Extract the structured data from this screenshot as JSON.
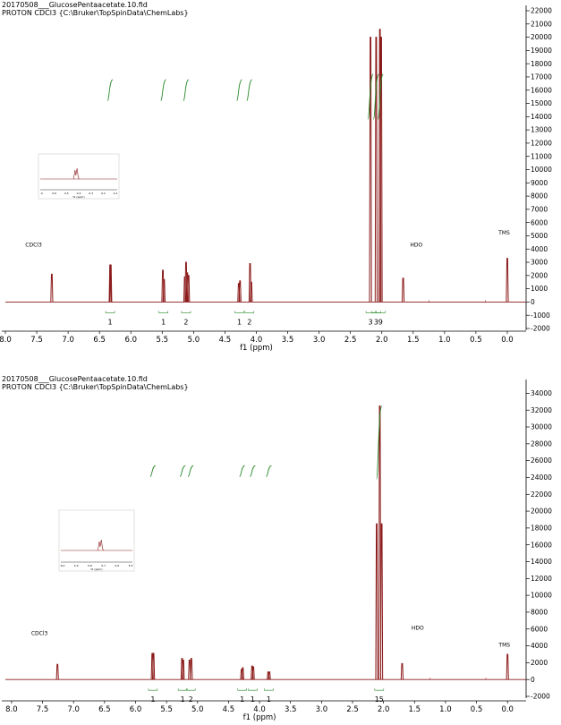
{
  "chart_data": [
    {
      "type": "line",
      "title_line1": "20170508___GlucosePentaacetate.10.fid",
      "title_line2": "PROTON CDCl3 {C:\\Bruker\\TopSpinData\\ChemLabs}",
      "xlabel": "f1 (ppm)",
      "xlim": [
        8.0,
        -0.3
      ],
      "x_ticks": [
        "8.0",
        "7.5",
        "7.0",
        "6.5",
        "6.0",
        "5.5",
        "5.0",
        "4.5",
        "4.0",
        "3.5",
        "3.0",
        "2.5",
        "2.0",
        "1.5",
        "1.0",
        "0.5",
        "0.0"
      ],
      "ylim": [
        -2000,
        22000
      ],
      "y_ticks": [
        "22000",
        "21000",
        "20000",
        "19000",
        "18000",
        "17000",
        "16000",
        "15000",
        "14000",
        "13000",
        "12000",
        "11000",
        "10000",
        "9000",
        "8000",
        "7000",
        "6000",
        "5000",
        "4000",
        "3000",
        "2000",
        "1000",
        "0",
        "-1000",
        "-2000"
      ],
      "line_color": "#8b1a1a",
      "integral_color": "#2a8a2a",
      "peaks": [
        {
          "ppm": 7.26,
          "height": 2100
        },
        {
          "ppm": 6.33,
          "height": 2800
        },
        {
          "ppm": 6.32,
          "height": 2800
        },
        {
          "ppm": 5.49,
          "height": 2400
        },
        {
          "ppm": 5.47,
          "height": 1700
        },
        {
          "ppm": 5.14,
          "height": 1900
        },
        {
          "ppm": 5.12,
          "height": 3000
        },
        {
          "ppm": 5.1,
          "height": 2200
        },
        {
          "ppm": 5.08,
          "height": 2000
        },
        {
          "ppm": 4.28,
          "height": 1400
        },
        {
          "ppm": 4.26,
          "height": 1600
        },
        {
          "ppm": 4.1,
          "height": 2900
        },
        {
          "ppm": 4.08,
          "height": 1500
        },
        {
          "ppm": 2.18,
          "height": 20000
        },
        {
          "ppm": 2.09,
          "height": 20000
        },
        {
          "ppm": 2.03,
          "height": 20600
        },
        {
          "ppm": 2.01,
          "height": 20000
        },
        {
          "ppm": 1.66,
          "height": 1800
        },
        {
          "ppm": 0.0,
          "height": 3300
        }
      ],
      "annotations": [
        {
          "text": "CDCl3",
          "ppm": 7.55,
          "y": 4200
        },
        {
          "text": "HDO",
          "ppm": 1.45,
          "y": 4200
        },
        {
          "text": "TMS",
          "ppm": 0.05,
          "y": 5100
        }
      ],
      "integrals": [
        {
          "ppm": 6.33,
          "label": "1"
        },
        {
          "ppm": 5.48,
          "label": "1"
        },
        {
          "ppm": 5.12,
          "label": "2"
        },
        {
          "ppm": 4.27,
          "label": "1"
        },
        {
          "ppm": 4.11,
          "label": "2"
        },
        {
          "ppm": 2.18,
          "label": "3"
        },
        {
          "ppm": 2.09,
          "label": "3"
        },
        {
          "ppm": 2.02,
          "label": "9"
        }
      ],
      "inset": {
        "x_ticks": [
          "0.",
          "0.6",
          "0.5",
          "0.4",
          "0.3",
          "0.2",
          "0.1"
        ],
        "xlabel": "f1 (ppm)"
      }
    },
    {
      "type": "line",
      "title_line1": "20170508___GlucosePentaacetate.10.fid",
      "title_line2": "PROTON CDCl3 {C:\\Bruker\\TopSpinData\\ChemLabs}",
      "xlabel": "f1 (ppm)",
      "xlim": [
        8.1,
        -0.3
      ],
      "x_ticks": [
        "8.0",
        "7.5",
        "7.0",
        "6.5",
        "6.0",
        "5.5",
        "5.0",
        "4.5",
        "4.0",
        "3.5",
        "3.0",
        "2.5",
        "2.0",
        "1.5",
        "1.0",
        "0.5",
        "0.0"
      ],
      "ylim": [
        -2000,
        35000
      ],
      "y_ticks": [
        "34000",
        "32000",
        "30000",
        "28000",
        "26000",
        "24000",
        "22000",
        "20000",
        "18000",
        "16000",
        "14000",
        "12000",
        "10000",
        "8000",
        "6000",
        "4000",
        "2000",
        "0",
        "-2000"
      ],
      "line_color": "#8b1a1a",
      "integral_color": "#2a8a2a",
      "peaks": [
        {
          "ppm": 7.26,
          "height": 1800
        },
        {
          "ppm": 5.73,
          "height": 3100
        },
        {
          "ppm": 5.71,
          "height": 3100
        },
        {
          "ppm": 5.25,
          "height": 2500
        },
        {
          "ppm": 5.23,
          "height": 2300
        },
        {
          "ppm": 5.13,
          "height": 2300
        },
        {
          "ppm": 5.1,
          "height": 2500
        },
        {
          "ppm": 4.29,
          "height": 1200
        },
        {
          "ppm": 4.27,
          "height": 1400
        },
        {
          "ppm": 4.12,
          "height": 1600
        },
        {
          "ppm": 4.1,
          "height": 1500
        },
        {
          "ppm": 3.86,
          "height": 900
        },
        {
          "ppm": 3.84,
          "height": 900
        },
        {
          "ppm": 2.11,
          "height": 18500
        },
        {
          "ppm": 2.06,
          "height": 32500
        },
        {
          "ppm": 2.03,
          "height": 18500
        },
        {
          "ppm": 1.7,
          "height": 1900
        },
        {
          "ppm": 0.0,
          "height": 3000
        }
      ],
      "annotations": [
        {
          "text": "CDCl3",
          "ppm": 7.55,
          "y": 5300
        },
        {
          "text": "HDO",
          "ppm": 1.45,
          "y": 5900
        },
        {
          "text": "TMS",
          "ppm": 0.05,
          "y": 3900
        }
      ],
      "integrals": [
        {
          "ppm": 5.72,
          "label": "1"
        },
        {
          "ppm": 5.24,
          "label": "1"
        },
        {
          "ppm": 5.11,
          "label": "2"
        },
        {
          "ppm": 4.28,
          "label": "1"
        },
        {
          "ppm": 4.11,
          "label": "1"
        },
        {
          "ppm": 3.85,
          "label": "1"
        },
        {
          "ppm": 2.07,
          "label": "15"
        }
      ],
      "inset": {
        "x_ticks": [
          "6.0",
          "5.9",
          "5.8",
          "5.7",
          "5.6",
          "5.5"
        ],
        "xlabel": "f1 (ppm)"
      }
    }
  ]
}
